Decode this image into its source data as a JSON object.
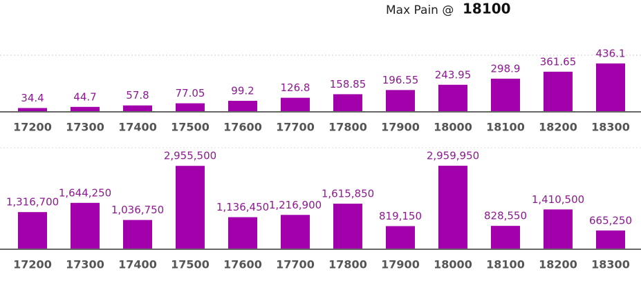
{
  "header": {
    "label": "Max Pain @",
    "strike": "18100"
  },
  "chart_data": [
    {
      "type": "bar",
      "color": "#a100aa",
      "categories": [
        "17200",
        "17300",
        "17400",
        "17500",
        "17600",
        "17700",
        "17800",
        "17900",
        "18000",
        "18100",
        "18200",
        "18300"
      ],
      "values": [
        34.4,
        44.7,
        57.8,
        77.05,
        99.2,
        126.8,
        158.85,
        196.55,
        243.95,
        298.9,
        361.65,
        436.1
      ],
      "ylim": [
        0,
        500
      ]
    },
    {
      "type": "bar",
      "color": "#a100aa",
      "categories": [
        "17200",
        "17300",
        "17400",
        "17500",
        "17600",
        "17700",
        "17800",
        "17900",
        "18000",
        "18100",
        "18200",
        "18300"
      ],
      "values": [
        1316700,
        1644250,
        1036750,
        2955500,
        1136450,
        1216900,
        1615850,
        819150,
        2959950,
        828550,
        1410500,
        665250
      ],
      "value_labels": [
        "1,316,700",
        "1,644,250",
        "1,036,750",
        "2,955,500",
        "1,136,450",
        "1,216,900",
        "1,615,850",
        "819,150",
        "2,959,950",
        "828,550",
        "1,410,500",
        "665,250"
      ],
      "ylim": [
        0,
        3000000
      ]
    }
  ]
}
